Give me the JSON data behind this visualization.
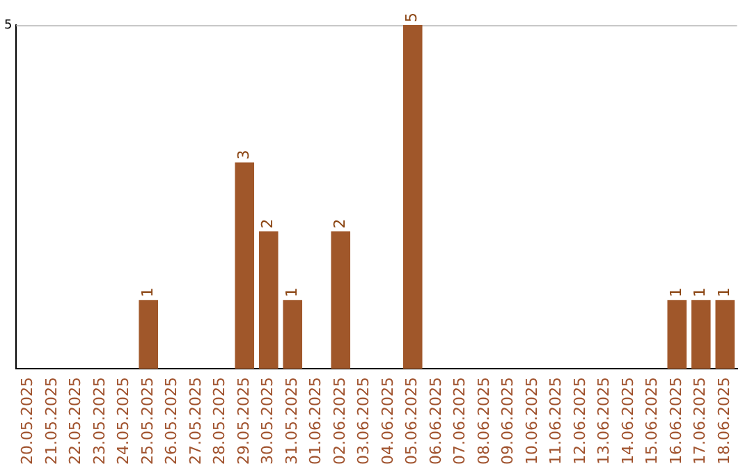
{
  "chart_data": {
    "type": "bar",
    "categories": [
      "20.05.2025",
      "21.05.2025",
      "22.05.2025",
      "23.05.2025",
      "24.05.2025",
      "25.05.2025",
      "26.05.2025",
      "27.05.2025",
      "28.05.2025",
      "29.05.2025",
      "30.05.2025",
      "31.05.2025",
      "01.06.2025",
      "02.06.2025",
      "03.06.2025",
      "04.06.2025",
      "05.06.2025",
      "06.06.2025",
      "07.06.2025",
      "08.06.2025",
      "09.06.2025",
      "10.06.2025",
      "11.06.2025",
      "12.06.2025",
      "13.06.2025",
      "14.06.2025",
      "15.06.2025",
      "16.06.2025",
      "17.06.2025",
      "18.06.2025"
    ],
    "values": [
      0,
      0,
      0,
      0,
      0,
      1,
      0,
      0,
      0,
      3,
      2,
      1,
      0,
      2,
      0,
      0,
      5,
      0,
      0,
      0,
      0,
      0,
      0,
      0,
      0,
      0,
      0,
      1,
      1,
      1
    ],
    "value_labels": [
      null,
      null,
      null,
      null,
      null,
      "1",
      null,
      null,
      null,
      "3",
      "2",
      "1",
      null,
      "2",
      null,
      null,
      "5",
      null,
      null,
      null,
      null,
      null,
      null,
      null,
      null,
      null,
      null,
      "1",
      "1",
      "1"
    ],
    "color": "#a0572a",
    "ylim": [
      0,
      5
    ],
    "yticks": [
      5
    ],
    "legend": false
  }
}
